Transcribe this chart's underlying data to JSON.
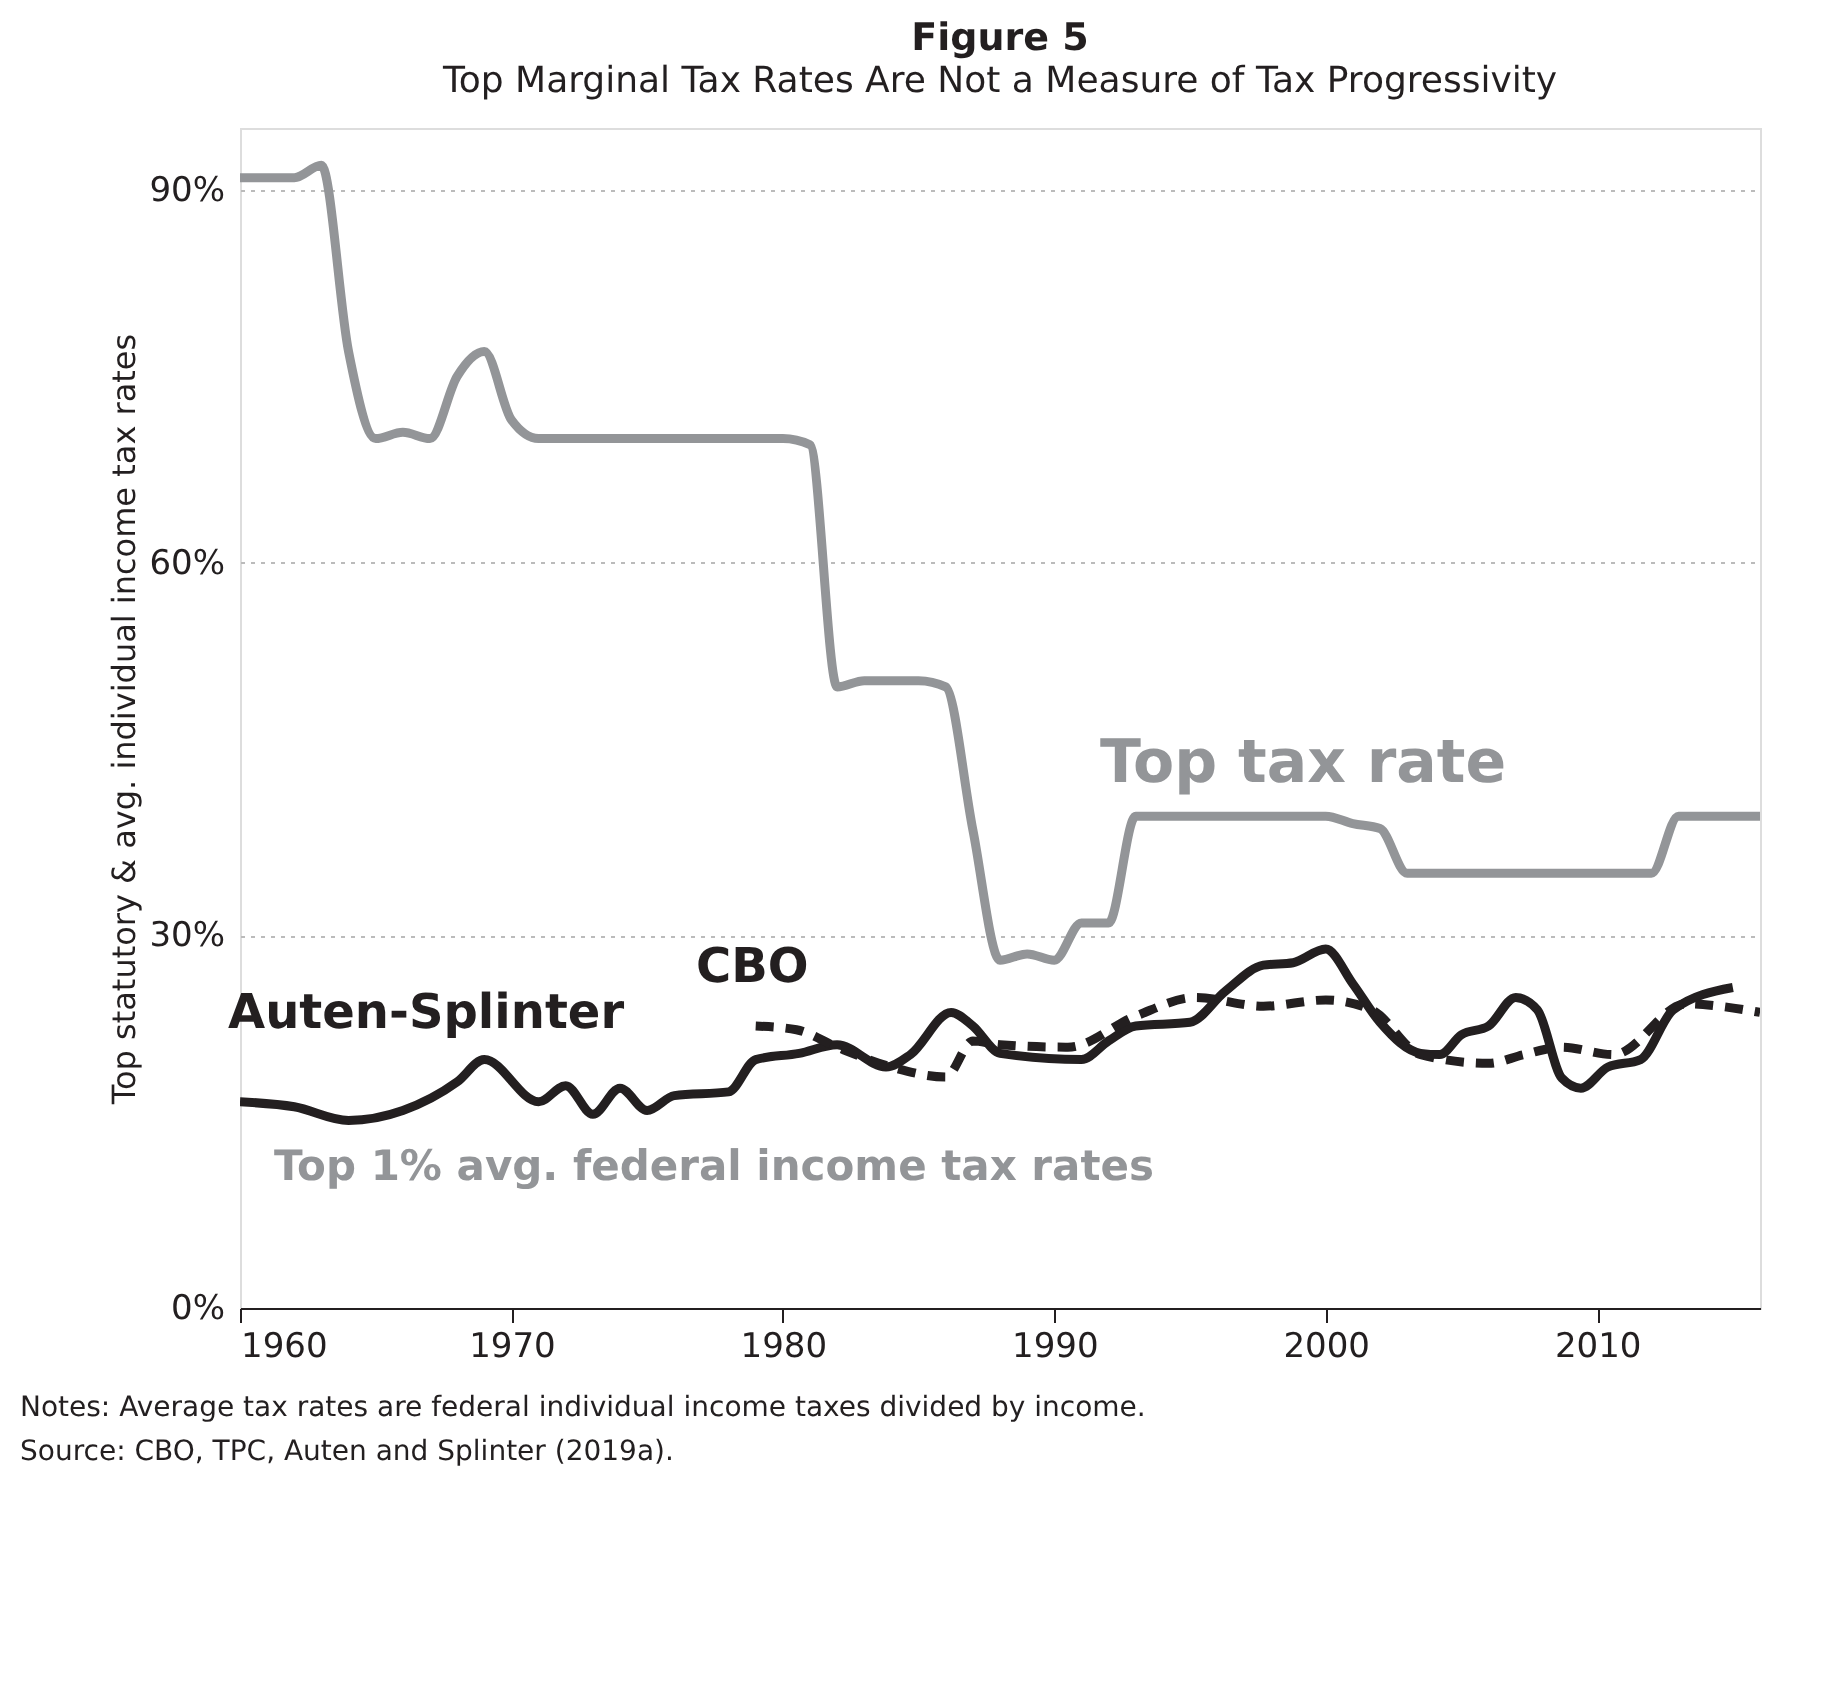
{
  "chart_data": {
    "type": "line",
    "title": "Figure 5",
    "subtitle": "Top Marginal Tax Rates Are Not a Measure of Tax Progressivity",
    "ylabel": "Top statutory  & avg. individual income tax rates",
    "xlim": [
      1960,
      2016
    ],
    "xticks": [
      1960,
      1970,
      1980,
      1990,
      2000,
      2010
    ],
    "ylim": [
      0,
      95
    ],
    "yticks": [
      {
        "value": 0,
        "label": "0%"
      },
      {
        "value": 30,
        "label": "30%"
      },
      {
        "value": 60,
        "label": "60%"
      },
      {
        "value": 90,
        "label": "90%"
      }
    ],
    "grid": "y",
    "series": [
      {
        "name": "Top tax rate",
        "color": "#939598",
        "line_style": "solid",
        "x": [
          1960,
          1962,
          1963,
          1964,
          1965,
          1966,
          1967,
          1968,
          1969,
          1970,
          1971,
          1980,
          1981,
          1982,
          1983,
          1985,
          1986,
          1987,
          1988,
          1989,
          1990,
          1991,
          1992,
          1993,
          2000,
          2001,
          2002,
          2003,
          2012,
          2013,
          2016
        ],
        "values": [
          91,
          91,
          92,
          77,
          70,
          70.5,
          70,
          75,
          77,
          71.5,
          70,
          70,
          69.5,
          50,
          50.5,
          50.5,
          50,
          38.5,
          28,
          28.5,
          28,
          31,
          31,
          39.6,
          39.6,
          39,
          38.6,
          35,
          35,
          39.6,
          39.6
        ]
      },
      {
        "name": "Auten-Splinter",
        "color": "#231f20",
        "line_style": "solid",
        "x": [
          1960,
          1962,
          1964,
          1966,
          1968,
          1969,
          1971,
          1972,
          1973,
          1974,
          1975,
          1976,
          1978,
          1979,
          1980.6,
          1982,
          1983.8,
          1984.7,
          1986.2,
          1987,
          1988,
          1991,
          1992,
          1993,
          1995,
          1996.3,
          1997.7,
          1998.8,
          2000,
          2001,
          2002,
          2003.5,
          2004.2,
          2005,
          2006,
          2007,
          2007.8,
          2008.7,
          2009.4,
          2010.4,
          2011.6,
          2012.8,
          2015
        ],
        "values": [
          16.6,
          16.2,
          15.1,
          15.9,
          18.2,
          20,
          16.6,
          17.9,
          15.6,
          17.7,
          15.9,
          17.1,
          17.4,
          20,
          20.5,
          21.2,
          19.4,
          20.4,
          23.8,
          22.7,
          20.5,
          20,
          21.5,
          22.7,
          23,
          25.5,
          27.6,
          27.8,
          28.9,
          26.1,
          23,
          20.5,
          20.4,
          22,
          22.7,
          25,
          24,
          18.5,
          17.7,
          19.4,
          20,
          24,
          25.8
        ]
      },
      {
        "name": "CBO",
        "color": "#231f20",
        "line_style": "dashed",
        "x": [
          1979,
          1980.5,
          1982,
          1984,
          1986,
          1987,
          1988,
          1990.5,
          1993,
          1995.2,
          1997.7,
          2000,
          2001.7,
          2003.5,
          2006,
          2007.3,
          2008.7,
          2010.6,
          2013.3,
          2014.5,
          2016
        ],
        "values": [
          22.7,
          22.4,
          21,
          19.4,
          18.6,
          21.5,
          21.2,
          21,
          23.5,
          25,
          24.3,
          24.8,
          24,
          20.4,
          19.7,
          20.4,
          21,
          20.4,
          24.5,
          24.3,
          23.8
        ]
      }
    ],
    "annotations": [
      "Top 1% avg. federal income tax rates",
      "Notes: Average tax rates are federal individual income taxes divided by income.",
      "Source: CBO, TPC, Auten and Splinter (2019a)."
    ]
  }
}
